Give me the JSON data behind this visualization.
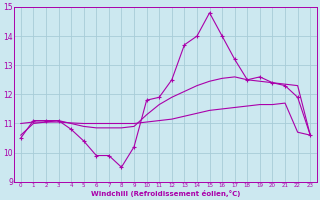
{
  "xlabel": "Windchill (Refroidissement éolien,°C)",
  "bg_color": "#cce8f0",
  "grid_color": "#a8ccd8",
  "line_color": "#aa00aa",
  "xlim": [
    -0.5,
    23.5
  ],
  "ylim": [
    9,
    15
  ],
  "yticks": [
    9,
    10,
    11,
    12,
    13,
    14,
    15
  ],
  "xticks": [
    0,
    1,
    2,
    3,
    4,
    5,
    6,
    7,
    8,
    9,
    10,
    11,
    12,
    13,
    14,
    15,
    16,
    17,
    18,
    19,
    20,
    21,
    22,
    23
  ],
  "hours": [
    0,
    1,
    2,
    3,
    4,
    5,
    6,
    7,
    8,
    9,
    10,
    11,
    12,
    13,
    14,
    15,
    16,
    17,
    18,
    19,
    20,
    21,
    22,
    23
  ],
  "windchill": [
    10.5,
    11.1,
    11.1,
    11.1,
    10.8,
    10.4,
    9.9,
    9.9,
    9.5,
    10.2,
    11.8,
    11.9,
    12.5,
    13.7,
    14.0,
    14.8,
    14.0,
    13.2,
    12.5,
    12.6,
    12.4,
    12.3,
    11.9,
    10.6
  ],
  "line_upper": [
    10.6,
    11.0,
    11.05,
    11.1,
    11.0,
    10.9,
    10.85,
    10.85,
    10.85,
    10.9,
    11.3,
    11.65,
    11.9,
    12.1,
    12.3,
    12.45,
    12.55,
    12.6,
    12.5,
    12.45,
    12.4,
    12.35,
    12.3,
    10.6
  ],
  "line_lower": [
    11.0,
    11.05,
    11.05,
    11.05,
    11.02,
    11.0,
    11.0,
    11.0,
    11.0,
    11.0,
    11.05,
    11.1,
    11.15,
    11.25,
    11.35,
    11.45,
    11.5,
    11.55,
    11.6,
    11.65,
    11.65,
    11.7,
    10.7,
    10.6
  ]
}
